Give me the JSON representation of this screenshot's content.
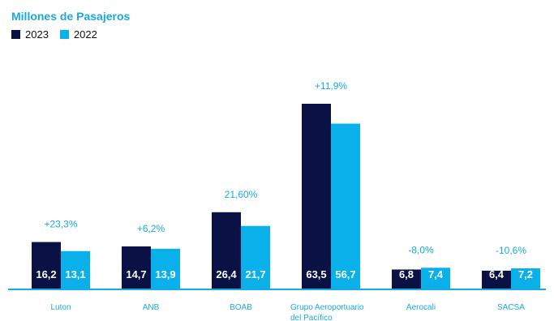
{
  "chart_data": {
    "type": "bar",
    "title": "Millones de Pasajeros",
    "categories": [
      "Luton",
      "ANB",
      "BOAB",
      "Grupo Aeroportuario\ndel Pacífico",
      "Aerocali",
      "SACSA"
    ],
    "series": [
      {
        "name": "2023",
        "values": [
          16.2,
          14.7,
          26.4,
          63.5,
          6.8,
          6.4
        ],
        "labels": [
          "16,2",
          "14,7",
          "26,4",
          "63,5",
          "6,8",
          "6,4"
        ]
      },
      {
        "name": "2022",
        "values": [
          13.1,
          13.9,
          21.7,
          56.7,
          7.4,
          7.2
        ],
        "labels": [
          "13,1",
          "13,9",
          "21,7",
          "56,7",
          "7,4",
          "7,2"
        ]
      }
    ],
    "annotations": [
      "+23,3%",
      "+6,2%",
      "21,60%",
      "+11,9%",
      "-8,0%",
      "-10,6%"
    ],
    "ylim": [
      0,
      70
    ],
    "grid": false,
    "legend_position": "top-left"
  },
  "colors": {
    "series_2023": "#0a1145",
    "series_2022": "#0ab0ea",
    "accent_text": "#1aa8e0",
    "axis": "#1aa8e0"
  }
}
